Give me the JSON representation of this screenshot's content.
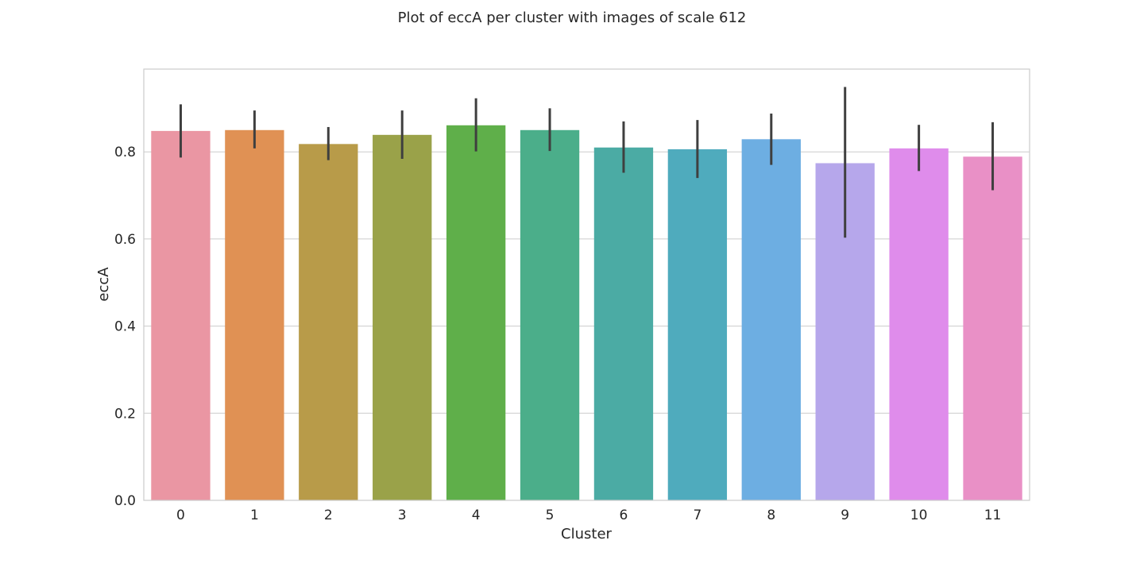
{
  "chart_data": {
    "type": "bar",
    "title": "Plot of eccA per cluster with images of scale 612",
    "xlabel": "Cluster",
    "ylabel": "eccA",
    "categories": [
      "0",
      "1",
      "2",
      "3",
      "4",
      "5",
      "6",
      "7",
      "8",
      "9",
      "10",
      "11"
    ],
    "values": [
      0.848,
      0.85,
      0.818,
      0.839,
      0.861,
      0.85,
      0.81,
      0.806,
      0.829,
      0.774,
      0.808,
      0.789
    ],
    "error_low": [
      0.787,
      0.808,
      0.781,
      0.784,
      0.801,
      0.802,
      0.752,
      0.74,
      0.77,
      0.603,
      0.756,
      0.712
    ],
    "error_high": [
      0.909,
      0.895,
      0.857,
      0.895,
      0.923,
      0.9,
      0.87,
      0.873,
      0.888,
      0.949,
      0.862,
      0.868
    ],
    "colors": [
      "#ea96a3",
      "#e09154",
      "#b89b49",
      "#9aa249",
      "#5faf4a",
      "#4bae8a",
      "#4baba4",
      "#4fabbd",
      "#6daee2",
      "#b6a7eb",
      "#df8ceb",
      "#e990c6"
    ],
    "error_color": "#3f3f3f",
    "ylim": [
      0,
      0.99
    ],
    "yticks": [
      0.0,
      0.2,
      0.4,
      0.6,
      0.8
    ],
    "ytick_labels": [
      "0.0",
      "0.2",
      "0.4",
      "0.6",
      "0.8"
    ],
    "grid": true,
    "legend": "none"
  }
}
